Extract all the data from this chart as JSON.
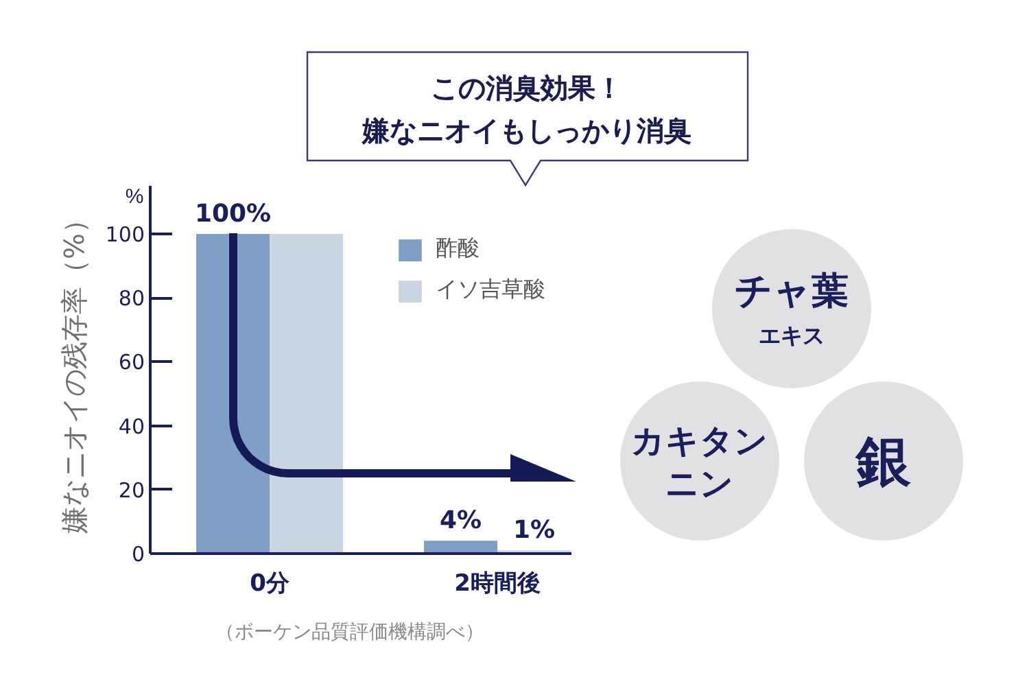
{
  "chart_data": {
    "type": "bar",
    "categories": [
      "0分",
      "2時間後"
    ],
    "series": [
      {
        "name": "酢酸",
        "color": "#809fc5",
        "values": [
          100,
          4
        ],
        "value_labels": [
          "100%",
          "4%"
        ]
      },
      {
        "name": "イソ吉草酸",
        "color": "#cbd4e1",
        "values": [
          100,
          1
        ],
        "value_labels": [
          null,
          "1%"
        ]
      }
    ],
    "ylabel": "嫌なニオイの残存率（%）",
    "ylim": [
      0,
      115
    ],
    "yticks": [
      0,
      20,
      40,
      60,
      80,
      100
    ],
    "legend": "top right",
    "grid": false,
    "annotations": [
      "この消臭効果！",
      "嫌なニオイもしっかり消臭",
      "%",
      "（ボーケン品質評価機構調べ）",
      "チャ葉",
      "エキス",
      "カキタンニン",
      "銀"
    ]
  }
}
